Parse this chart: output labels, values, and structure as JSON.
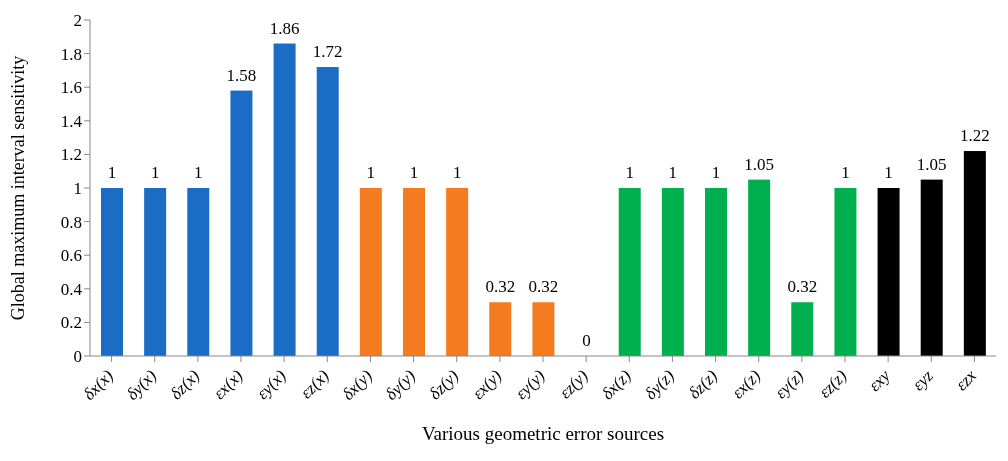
{
  "chart_data": {
    "type": "bar",
    "xlabel": "Various geometric error sources",
    "ylabel": "Global maximum interval sensitivity",
    "categories": [
      "δx(x)",
      "δy(x)",
      "δz(x)",
      "εx(x)",
      "εy(x)",
      "εz(x)",
      "δx(y)",
      "δy(y)",
      "δz(y)",
      "εx(y)",
      "εy(y)",
      "εz(y)",
      "δx(z)",
      "δy(z)",
      "δz(z)",
      "εx(z)",
      "εy(z)",
      "εz(z)",
      "εxy",
      "εyz",
      "εzx"
    ],
    "values": [
      1,
      1,
      1,
      1.58,
      1.86,
      1.72,
      1,
      1,
      1,
      0.32,
      0.32,
      0,
      1,
      1,
      1,
      1.05,
      0.32,
      1,
      1,
      1.05,
      1.22
    ],
    "colors": [
      "#1a6cc4",
      "#1a6cc4",
      "#1a6cc4",
      "#1a6cc4",
      "#1a6cc4",
      "#1a6cc4",
      "#f47b20",
      "#f47b20",
      "#f47b20",
      "#f47b20",
      "#f47b20",
      "#f47b20",
      "#00b04f",
      "#00b04f",
      "#00b04f",
      "#00b04f",
      "#00b04f",
      "#00b04f",
      "#000000",
      "#000000",
      "#000000"
    ],
    "ylim": [
      0,
      2
    ],
    "yticks": [
      0,
      0.2,
      0.4,
      0.6,
      0.8,
      1,
      1.2,
      1.4,
      1.6,
      1.8,
      2
    ],
    "data_labels": true,
    "grid": false,
    "legend": false
  }
}
